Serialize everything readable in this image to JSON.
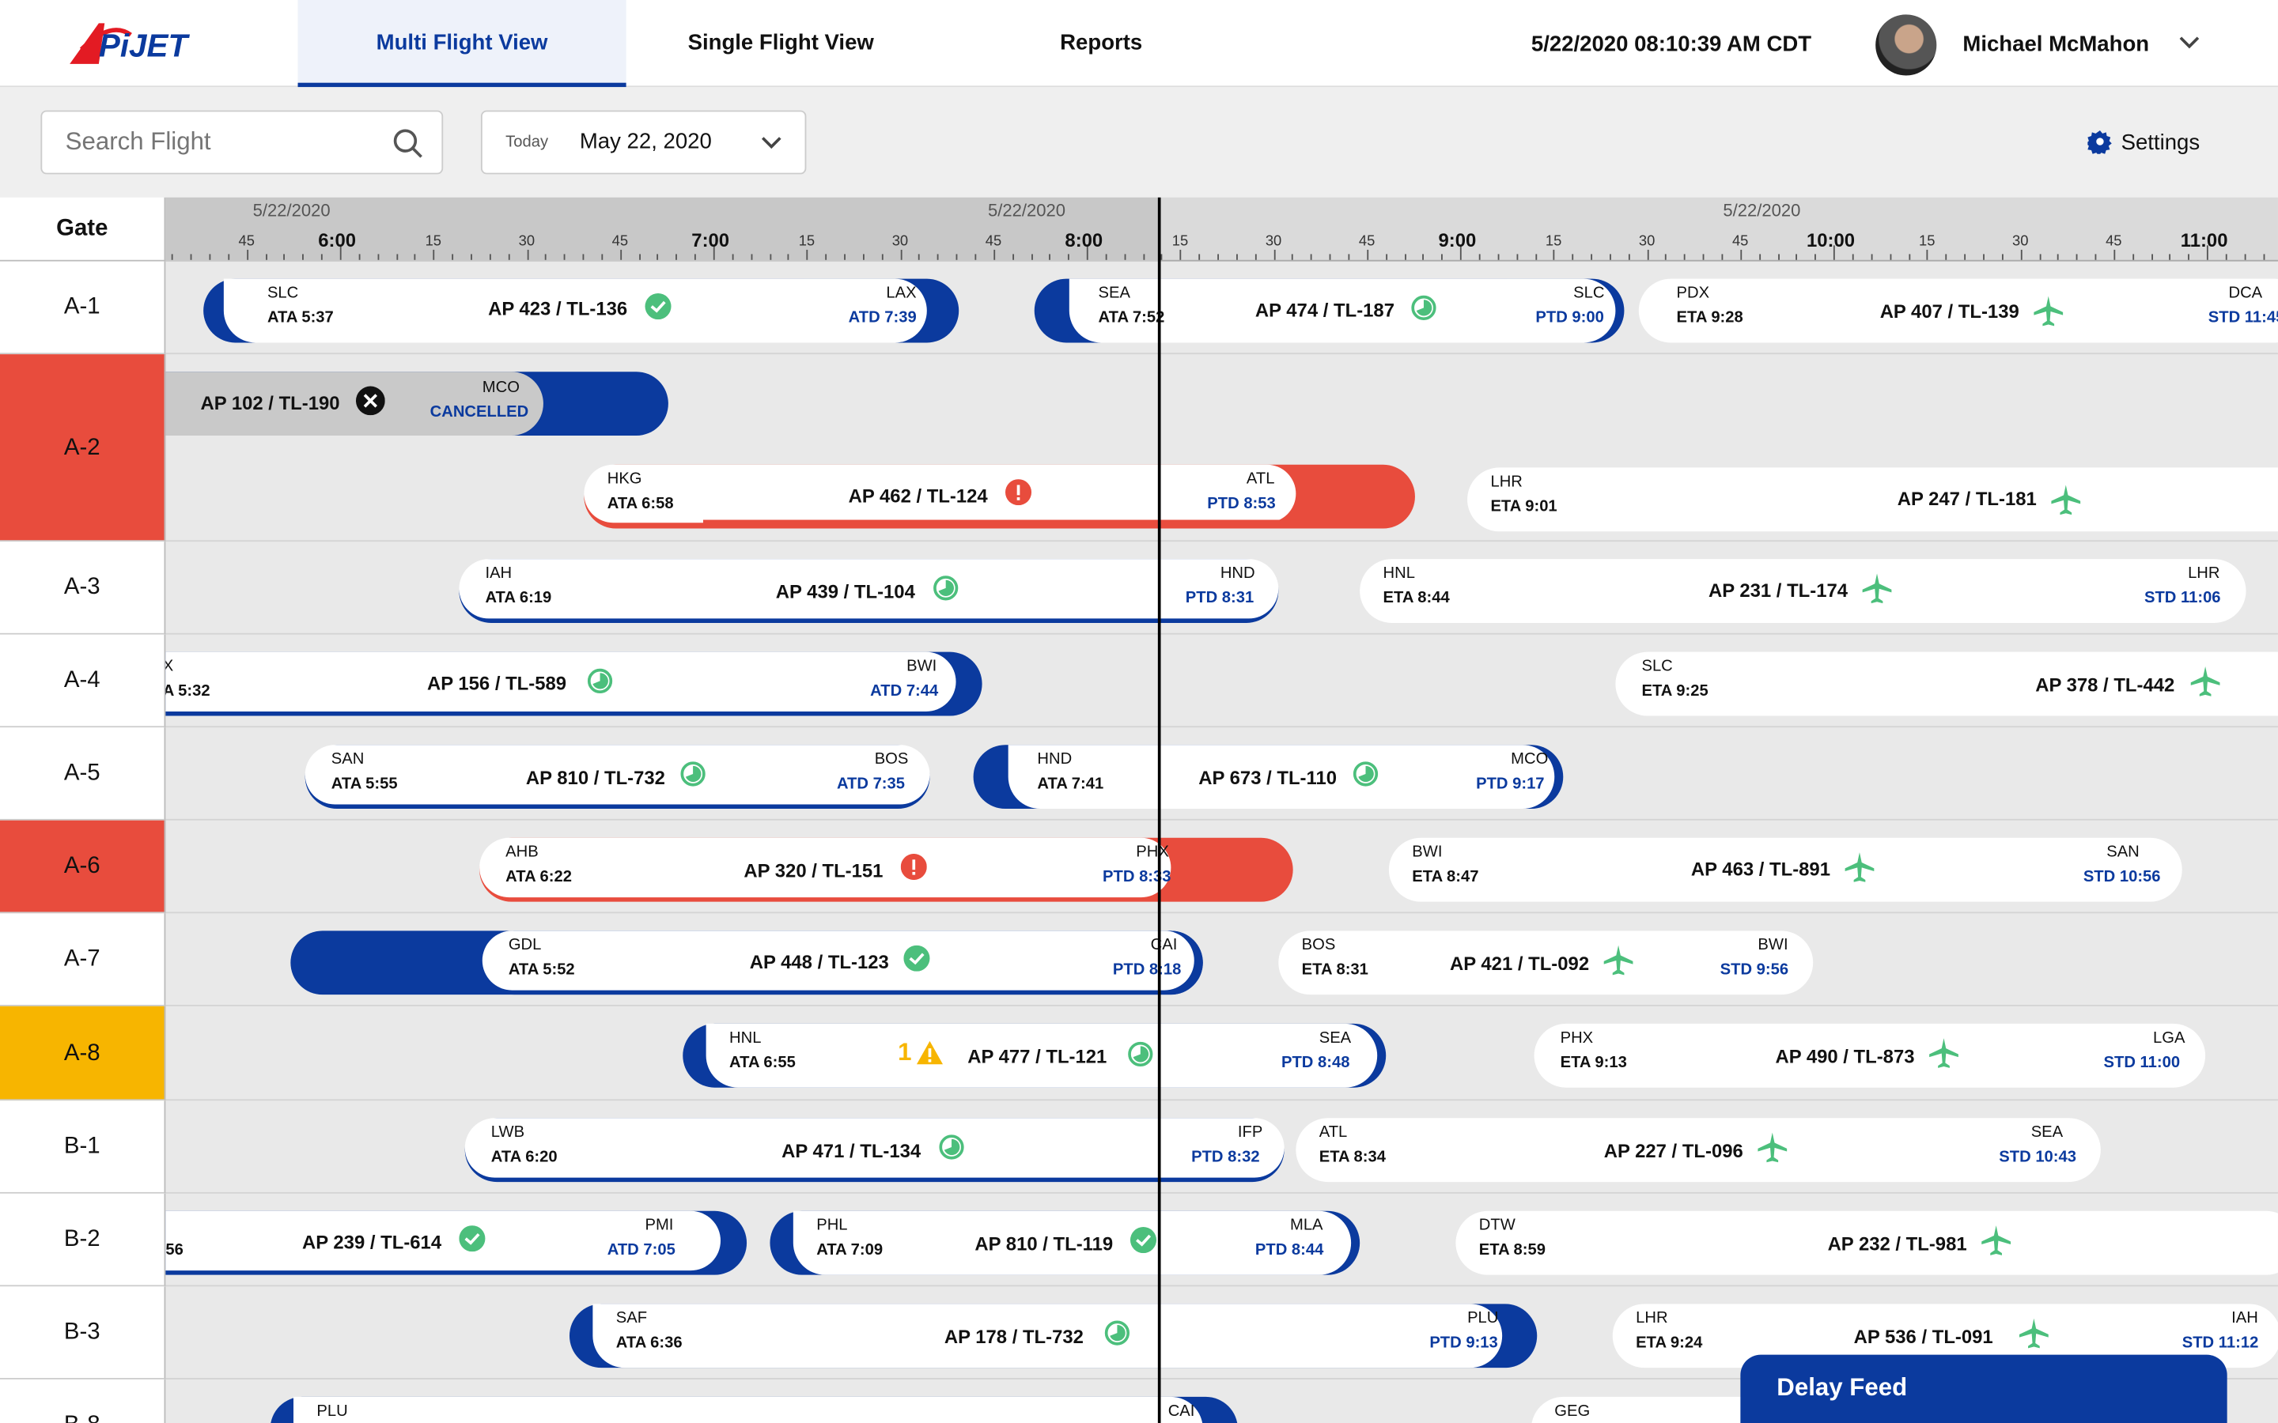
{
  "header": {
    "tabs": [
      "Multi Flight View",
      "Single Flight View",
      "Reports"
    ],
    "datetime": "5/22/2020 08:10:39 AM CDT",
    "user": "Michael McMahon"
  },
  "toolbar": {
    "search_placeholder": "Search Flight",
    "date_label": "Today",
    "date_value": "May 22, 2020",
    "settings": "Settings"
  },
  "timeline": {
    "gate_header": "Gate",
    "dates": [
      "5/22/2020",
      "5/22/2020",
      "5/22/2020"
    ],
    "hour_labels": [
      "6:00",
      "7:00",
      "8:00",
      "9:00",
      "10:00",
      "11:00"
    ],
    "minute_labels": [
      "15",
      "30",
      "45"
    ]
  },
  "gates": [
    {
      "id": "A-1",
      "status": "normal"
    },
    {
      "id": "A-2",
      "status": "alert"
    },
    {
      "id": "A-3",
      "status": "normal"
    },
    {
      "id": "A-4",
      "status": "normal"
    },
    {
      "id": "A-5",
      "status": "normal"
    },
    {
      "id": "A-6",
      "status": "alert"
    },
    {
      "id": "A-7",
      "status": "normal"
    },
    {
      "id": "A-8",
      "status": "warning"
    },
    {
      "id": "B-1",
      "status": "normal"
    },
    {
      "id": "B-2",
      "status": "normal"
    },
    {
      "id": "B-3",
      "status": "normal"
    },
    {
      "id": "B-8",
      "status": "normal"
    }
  ],
  "flights": {
    "a1_1": {
      "from": "SLC",
      "arr": "ATA 5:37",
      "flight": "AP 423 / TL-136",
      "to": "LAX",
      "dep": "ATD 7:39",
      "icon": "check-circle-icon"
    },
    "a1_2": {
      "from": "SEA",
      "arr": "ATA 7:52",
      "flight": "AP 474 / TL-187",
      "to": "SLC",
      "dep": "PTD 9:00",
      "icon": "progress-icon"
    },
    "a1_3": {
      "from": "PDX",
      "arr": "ETA 9:28",
      "flight": "AP 407 / TL-139",
      "to": "DCA",
      "dep": "STD 11:45",
      "icon": "plane-icon"
    },
    "a2_1": {
      "flight": "AP 102 / TL-190",
      "to": "MCO",
      "dep": "CANCELLED",
      "icon": "cancel-icon"
    },
    "a2_2": {
      "from": "HKG",
      "arr": "ATA 6:58",
      "flight": "AP 462 / TL-124",
      "to": "ATL",
      "dep": "PTD 8:53",
      "icon": "alert-icon"
    },
    "a2_3": {
      "from": "LHR",
      "arr": "ETA 9:01",
      "flight": "AP 247 / TL-181",
      "icon": "plane-icon"
    },
    "a3_1": {
      "from": "IAH",
      "arr": "ATA 6:19",
      "flight": "AP 439 / TL-104",
      "to": "HND",
      "dep": "PTD 8:31",
      "icon": "progress-icon"
    },
    "a3_2": {
      "from": "HNL",
      "arr": "ETA 8:44",
      "flight": "AP 231 / TL-174",
      "to": "LHR",
      "dep": "STD 11:06",
      "icon": "plane-icon"
    },
    "a4_1": {
      "from": "X",
      "arr": "A 5:32",
      "flight": "AP 156 / TL-589",
      "to": "BWI",
      "dep": "ATD 7:44",
      "icon": "progress-icon"
    },
    "a4_2": {
      "from": "SLC",
      "arr": "ETA 9:25",
      "flight": "AP 378 / TL-442",
      "icon": "plane-icon"
    },
    "a5_1": {
      "from": "SAN",
      "arr": "ATA 5:55",
      "flight": "AP 810 / TL-732",
      "to": "BOS",
      "dep": "ATD 7:35",
      "icon": "progress-icon"
    },
    "a5_2": {
      "from": "HND",
      "arr": "ATA 7:41",
      "flight": "AP 673 / TL-110",
      "to": "MCO",
      "dep": "PTD 9:17",
      "icon": "progress-icon"
    },
    "a6_1": {
      "from": "AHB",
      "arr": "ATA 6:22",
      "flight": "AP 320 / TL-151",
      "to": "PHX",
      "dep": "PTD 8:33",
      "icon": "alert-icon"
    },
    "a6_2": {
      "from": "BWI",
      "arr": "ETA 8:47",
      "flight": "AP 463 / TL-891",
      "to": "SAN",
      "dep": "STD 10:56",
      "icon": "plane-icon"
    },
    "a7_1": {
      "from": "GDL",
      "arr": "ATA 5:52",
      "flight": "AP 448 / TL-123",
      "to": "CAI",
      "dep": "PTD 8:18",
      "icon": "check-circle-icon"
    },
    "a7_2": {
      "from": "BOS",
      "arr": "ETA 8:31",
      "flight": "AP 421 / TL-092",
      "to": "BWI",
      "dep": "STD 9:56",
      "icon": "plane-icon"
    },
    "a8_1": {
      "from": "HNL",
      "arr": "ATA 6:55",
      "flight": "AP 477 / TL-121",
      "to": "SEA",
      "dep": "PTD 8:48",
      "icon": "progress-icon",
      "warn": "1"
    },
    "a8_2": {
      "from": "PHX",
      "arr": "ETA 9:13",
      "flight": "AP 490 / TL-873",
      "to": "LGA",
      "dep": "STD 11:00",
      "icon": "plane-icon"
    },
    "b1_1": {
      "from": "LWB",
      "arr": "ATA 6:20",
      "flight": "AP 471 / TL-134",
      "to": "IFP",
      "dep": "PTD 8:32",
      "icon": "progress-icon"
    },
    "b1_2": {
      "from": "ATL",
      "arr": "ETA 8:34",
      "flight": "AP 227 / TL-096",
      "to": "SEA",
      "dep": "STD 10:43",
      "icon": "plane-icon"
    },
    "b2_1": {
      "arr": "56",
      "flight": "AP 239 / TL-614",
      "to": "PMI",
      "dep": "ATD 7:05",
      "icon": "check-circle-icon"
    },
    "b2_2": {
      "from": "PHL",
      "arr": "ATA 7:09",
      "flight": "AP 810 / TL-119",
      "to": "MLA",
      "dep": "PTD 8:44",
      "icon": "check-circle-icon"
    },
    "b2_3": {
      "from": "DTW",
      "arr": "ETA 8:59",
      "flight": "AP 232 / TL-981",
      "icon": "plane-icon"
    },
    "b3_1": {
      "from": "SAF",
      "arr": "ATA 6:36",
      "flight": "AP 178 / TL-732",
      "to": "PLU",
      "dep": "PTD 9:13",
      "icon": "progress-icon"
    },
    "b3_2": {
      "from": "LHR",
      "arr": "ETA 9:24",
      "flight": "AP 536 / TL-091",
      "to": "IAH",
      "dep": "STD 11:12",
      "icon": "plane-icon"
    },
    "b8_1": {
      "from": "PLU",
      "to": "CAI"
    },
    "b8_2": {
      "from": "GEG"
    }
  },
  "delay_feed": "Delay Feed",
  "colors": {
    "primary": "#0b3a9e",
    "alert": "#e84c3d",
    "warning": "#f7b500",
    "ok": "#4cbf7c"
  }
}
